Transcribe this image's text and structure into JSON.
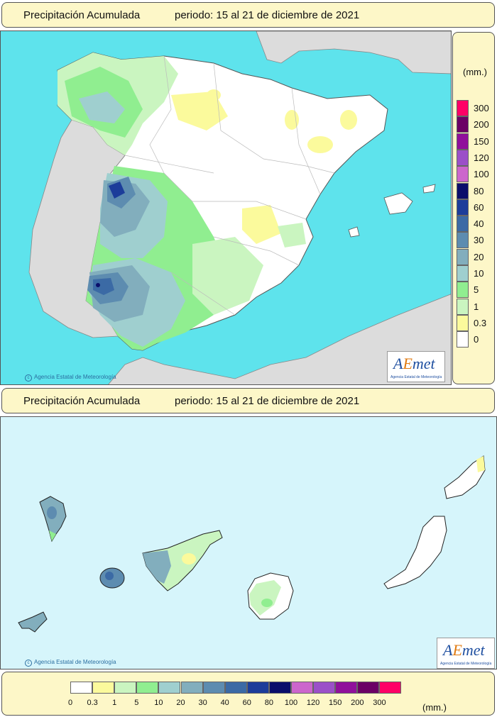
{
  "peninsula": {
    "title": "Precipitación Acumulada",
    "period": "periodo: 15 al 21 de diciembre de 2021",
    "credit": "Agencia Estatal de Meteorología"
  },
  "canarias": {
    "title": "Precipitación Acumulada",
    "period": "periodo: 15 al 21 de diciembre de 2021",
    "credit": "Agencia Estatal de Meteorología"
  },
  "logo": {
    "text_a": "A",
    "text_e": "E",
    "text_met": "met",
    "subtitle": "Agencia Estatal de Meteorología"
  },
  "legend": {
    "unit": "(mm.)",
    "classes": [
      {
        "label": "0",
        "color": "#ffffff"
      },
      {
        "label": "0.3",
        "color": "#fbfa9c"
      },
      {
        "label": "1",
        "color": "#caf5c0"
      },
      {
        "label": "5",
        "color": "#90ee90"
      },
      {
        "label": "10",
        "color": "#9fcfcf"
      },
      {
        "label": "20",
        "color": "#82aebd"
      },
      {
        "label": "30",
        "color": "#5d8cb0"
      },
      {
        "label": "40",
        "color": "#3b6aa5"
      },
      {
        "label": "60",
        "color": "#1c3d9a"
      },
      {
        "label": "80",
        "color": "#0a0e6b"
      },
      {
        "label": "100",
        "color": "#cc66cc"
      },
      {
        "label": "120",
        "color": "#9b50c8"
      },
      {
        "label": "150",
        "color": "#90109b"
      },
      {
        "label": "200",
        "color": "#6b0065"
      },
      {
        "label": "300",
        "color": "#ff0066"
      }
    ]
  }
}
